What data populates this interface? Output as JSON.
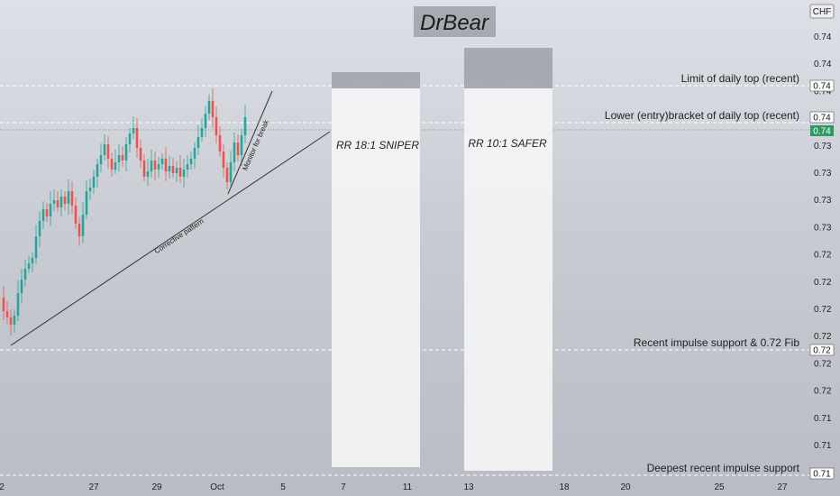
{
  "chart_data": {
    "type": "candlestick",
    "title": "DrBear",
    "currency": "CHF",
    "x_tick_labels": [
      "2",
      "27",
      "29",
      "Oct",
      "5",
      "7",
      "11",
      "13",
      "18",
      "20",
      "25",
      "27"
    ],
    "y_tick_labels": [
      "0.74",
      "0.74",
      "0.74",
      "0.73",
      "0.73",
      "0.73",
      "0.73",
      "0.73",
      "0.72",
      "0.72",
      "0.72",
      "0.72",
      "0.72",
      "0.72",
      "0.71",
      "0.71",
      "0.71"
    ],
    "price_tags": [
      {
        "label": "0.74",
        "style": "white"
      },
      {
        "label": "0.74",
        "style": "white"
      },
      {
        "label": "0.74",
        "style": "green"
      },
      {
        "label": "0.72",
        "style": "white"
      },
      {
        "label": "0.71",
        "style": "white"
      }
    ],
    "level_labels": [
      "Limit of daily top (recent)",
      "Lower (entry)bracket of daily top (recent)",
      "Recent impulse support & 0.72 Fib",
      "Deepest recent impulse support"
    ],
    "boxes": [
      {
        "label": "RR 18:1 SNIPER"
      },
      {
        "label": "RR 10:1 SAFER"
      }
    ],
    "annotations": [
      "Corrective pattern",
      "Monitor for break"
    ],
    "colors": {
      "up": "#26a69a",
      "down": "#ef5350",
      "current_price": "#2e9a63",
      "reward_zone": "#f4f4f6",
      "risk_zone": "#9a9da4"
    }
  }
}
